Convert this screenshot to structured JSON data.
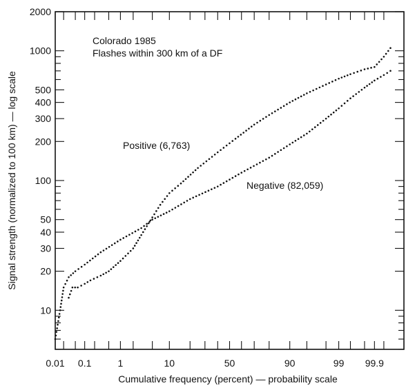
{
  "chart_data": {
    "type": "line",
    "title": "",
    "xlabel": "Cumulative frequency (percent) — probability scale",
    "ylabel": "Signal strength (normalized to 100 km) — log scale",
    "x_scale": "probability",
    "y_scale": "log",
    "xlim": [
      0.01,
      99.99
    ],
    "ylim": [
      5,
      2000
    ],
    "grid": false,
    "x_tick_labels": [
      {
        "value": 0.01,
        "label": "0.01"
      },
      {
        "value": 0.1,
        "label": "0.1"
      },
      {
        "value": 1,
        "label": "1"
      },
      {
        "value": 10,
        "label": "10"
      },
      {
        "value": 50,
        "label": "50"
      },
      {
        "value": 90,
        "label": "90"
      },
      {
        "value": 99,
        "label": "99"
      },
      {
        "value": 99.9,
        "label": "99.9"
      }
    ],
    "y_tick_labels": [
      {
        "value": 2000,
        "label": "2000"
      },
      {
        "value": 1000,
        "label": "1000"
      },
      {
        "value": 500,
        "label": "500"
      },
      {
        "value": 400,
        "label": "400"
      },
      {
        "value": 300,
        "label": "300"
      },
      {
        "value": 200,
        "label": "200"
      },
      {
        "value": 100,
        "label": "100"
      },
      {
        "value": 50,
        "label": "50"
      },
      {
        "value": 40,
        "label": "40"
      },
      {
        "value": 30,
        "label": "30"
      },
      {
        "value": 20,
        "label": "20"
      },
      {
        "value": 10,
        "label": "10"
      }
    ],
    "annotations": {
      "line1": "Colorado 1985",
      "line2": "Flashes within 300 km of a DF"
    },
    "series": [
      {
        "name": "Positive (6,763)",
        "x": [
          0.03,
          0.04,
          0.06,
          0.1,
          0.15,
          0.3,
          0.5,
          1,
          2,
          3,
          5,
          7,
          10,
          15,
          25,
          40,
          55,
          70,
          80,
          90,
          95,
          98,
          99,
          99.5,
          99.8,
          99.9,
          99.95,
          99.97
        ],
        "y": [
          12.5,
          15,
          15,
          16,
          17,
          18.5,
          20,
          24,
          30,
          38,
          52,
          65,
          80,
          95,
          125,
          165,
          210,
          270,
          320,
          400,
          470,
          550,
          610,
          660,
          720,
          750,
          900,
          1050
        ]
      },
      {
        "name": "Negative (82,059)",
        "x": [
          0.01,
          0.015,
          0.02,
          0.03,
          0.05,
          0.1,
          0.3,
          1,
          3,
          5,
          10,
          20,
          40,
          60,
          80,
          90,
          95,
          98,
          99,
          99.5,
          99.8,
          99.9,
          99.95,
          99.97
        ],
        "y": [
          6,
          10,
          15,
          18,
          20,
          22.5,
          28,
          35,
          43,
          50,
          58,
          72,
          90,
          115,
          150,
          190,
          230,
          300,
          360,
          430,
          520,
          590,
          650,
          700
        ]
      }
    ]
  }
}
